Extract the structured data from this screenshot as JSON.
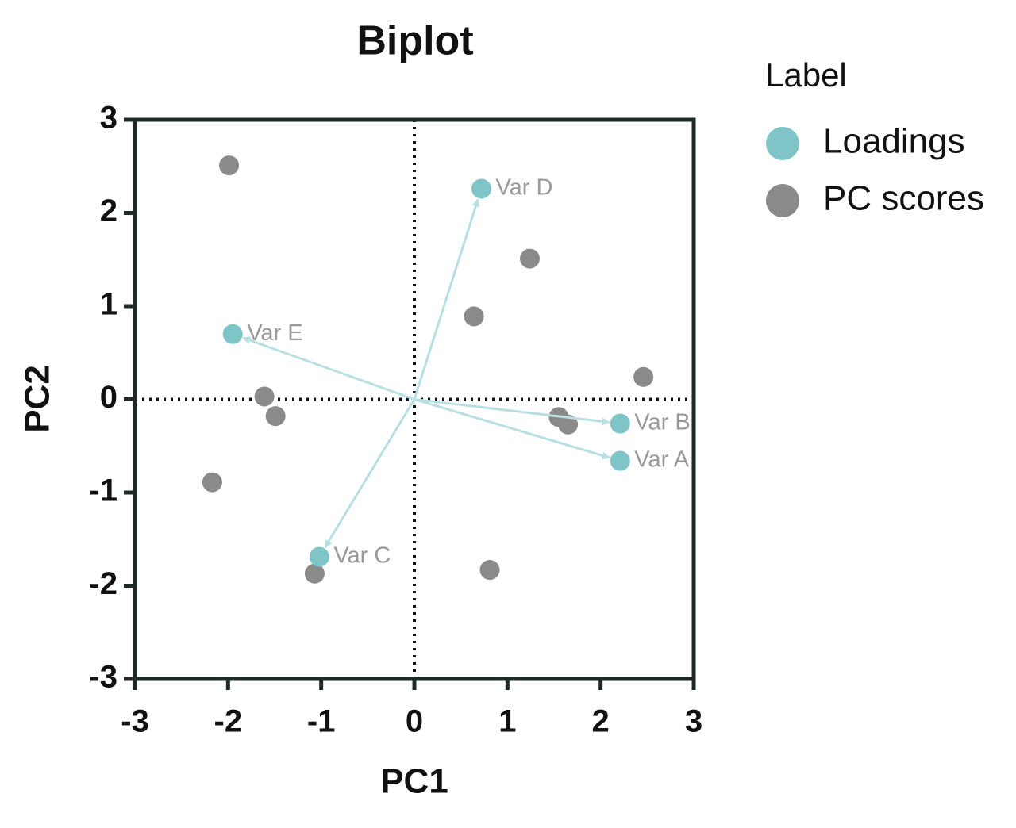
{
  "chart_data": {
    "type": "scatter",
    "title": "Biplot",
    "x_label": "PC1",
    "y_label": "PC2",
    "xlim": [
      -3,
      3
    ],
    "ylim": [
      -3,
      3
    ],
    "xticks": [
      -3,
      -2,
      -1,
      0,
      1,
      2,
      3
    ],
    "yticks": [
      -3,
      -2,
      -1,
      0,
      1,
      2,
      3
    ],
    "zero_lines": true,
    "legend_title": "Label",
    "legend_position": "right",
    "series": [
      {
        "name": "Loadings",
        "color": "#7fc4c6",
        "arrow_color": "#b8e0e2",
        "arrows": true,
        "x": [
          2.21,
          2.21,
          -1.02,
          0.72,
          -1.95
        ],
        "values": [
          -0.66,
          -0.26,
          -1.69,
          2.26,
          0.7
        ],
        "labels": [
          "Var A",
          "Var B",
          "Var C",
          "Var D",
          "Var E"
        ]
      },
      {
        "name": "PC scores",
        "color": "#8a8a88",
        "x": [
          -1.99,
          1.24,
          0.64,
          2.46,
          -1.61,
          -1.49,
          1.55,
          1.65,
          -2.17,
          -1.07,
          0.81
        ],
        "values": [
          2.51,
          1.51,
          0.89,
          0.24,
          0.03,
          -0.18,
          -0.19,
          -0.27,
          -0.89,
          -1.87,
          -1.83
        ]
      }
    ]
  }
}
